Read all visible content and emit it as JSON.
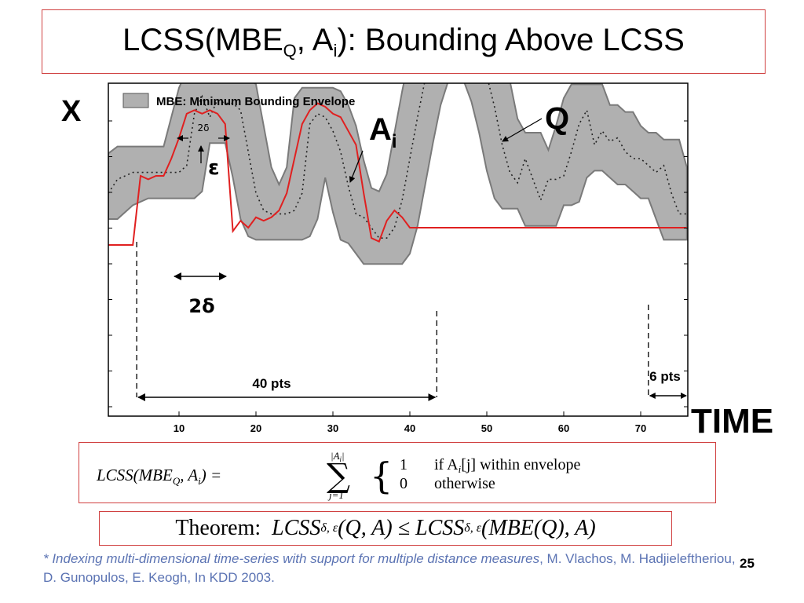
{
  "title": {
    "prefix": "LCSS(MBE",
    "sub1": "Q",
    "mid": ", A",
    "sub2": "i",
    "suffix": "): Bounding Above LCSS"
  },
  "chart_data": {
    "type": "line",
    "xlim": [
      0,
      76
    ],
    "ylim": [
      0,
      10
    ],
    "x_ticks": [
      10,
      20,
      30,
      40,
      50,
      60,
      70
    ],
    "x_tick_labels": [
      "10",
      "20",
      "30",
      "40",
      "50",
      "60",
      "70"
    ],
    "xlabel": "TIME",
    "ylabel": "X",
    "grid": false,
    "legend": {
      "placement": "top-left",
      "label": "MBE: Minimum Bounding Envelope"
    },
    "series": [
      {
        "name": "Q",
        "x": [
          0,
          2,
          4,
          6,
          8,
          10,
          11,
          12,
          13,
          14,
          15,
          16,
          17,
          18,
          19,
          20,
          21,
          22,
          23,
          24,
          25,
          26,
          27,
          28,
          29,
          30,
          31,
          32,
          33,
          34,
          35,
          36,
          37,
          38,
          39,
          40,
          41,
          42,
          43,
          44,
          45,
          46,
          47,
          48,
          49,
          50,
          51,
          52,
          53,
          54,
          55,
          56,
          57,
          58,
          59,
          60,
          61,
          62,
          63,
          64,
          65,
          66,
          67,
          68,
          69,
          70,
          71,
          72,
          73,
          74,
          75,
          76
        ],
        "values": [
          4.0,
          4.4,
          4.6,
          4.6,
          4.6,
          4.6,
          4.8,
          6.3,
          6.8,
          6.2,
          6.7,
          6.6,
          6.6,
          6.4,
          5.2,
          4.0,
          3.5,
          3.4,
          3.4,
          3.4,
          3.5,
          4.0,
          6.0,
          6.3,
          6.2,
          5.8,
          5.2,
          4.2,
          3.4,
          3.3,
          3.0,
          2.7,
          2.7,
          3.0,
          3.8,
          5.0,
          6.2,
          7.3,
          8.0,
          8.4,
          8.6,
          8.6,
          8.5,
          8.4,
          8.0,
          7.4,
          6.5,
          5.4,
          4.6,
          4.3,
          5.0,
          4.4,
          3.8,
          4.4,
          4.4,
          4.5,
          5.2,
          6.0,
          6.4,
          5.4,
          5.8,
          5.5,
          5.6,
          5.2,
          5.0,
          5.0,
          4.8,
          4.6,
          4.8,
          4.0,
          3.4,
          3.4
        ]
      },
      {
        "name": "A",
        "x": [
          0,
          3,
          4,
          5,
          6,
          7,
          8,
          9,
          10,
          11,
          12,
          13,
          14,
          15,
          16,
          17,
          18,
          19,
          20,
          21,
          22,
          23,
          24,
          25,
          26,
          27,
          28,
          29,
          30,
          31,
          32,
          33,
          34,
          35,
          36,
          37,
          38,
          39,
          40,
          45,
          50,
          55,
          60,
          65,
          70,
          76
        ],
        "values": [
          2.5,
          2.5,
          2.5,
          4.5,
          4.4,
          4.5,
          4.5,
          5.0,
          5.6,
          6.3,
          6.4,
          6.3,
          6.4,
          6.3,
          6.0,
          2.9,
          3.2,
          3.0,
          3.3,
          3.2,
          3.3,
          3.5,
          4.0,
          5.0,
          6.0,
          6.4,
          6.6,
          6.5,
          6.3,
          6.2,
          5.8,
          5.4,
          4.0,
          2.7,
          2.6,
          3.2,
          3.5,
          3.3,
          3.0,
          3.0,
          3.0,
          3.0,
          3.0,
          3.0,
          3.0,
          3.0
        ]
      }
    ]
  },
  "annotations": {
    "x_axis_letter": "X",
    "legend_label": "MBE: Minimum Bounding Envelope",
    "ai_main": "A",
    "ai_sub": "i",
    "q_label": "Q",
    "epsilon": "ε",
    "two_delta_small": "2δ",
    "two_delta_large": "2δ",
    "span_40": "40 pts",
    "span_6": "6 pts",
    "time": "TIME"
  },
  "formula": {
    "lhs": "LCSS(MBE",
    "lhs_sub": "Q",
    "lhs_end": ", A",
    "lhs_sub2": "i",
    "lhs_close": ") =",
    "sum_top": "|A",
    "sum_top_sub": "i",
    "sum_top_end": "|",
    "sum_bottom": "j=1",
    "case1_value": "1",
    "case1_cond": "if A",
    "case1_cond_sub": "i",
    "case1_cond_end": "[j]  within envelope",
    "case2_value": "0",
    "case2_cond": "otherwise"
  },
  "theorem": {
    "label": "Theorem:",
    "lhs": "LCSS",
    "sub": "δ, ε",
    "lhs_args": "(Q, A) ≤ LCSS",
    "rhs_args": "(MBE(Q), A)"
  },
  "footnote": {
    "italic_part": "* Indexing multi-dimensional time-series with support for multiple distance measures",
    "rest": ", M. Vlachos, M. Hadjieleftheriou, D. Gunopulos, E. Keogh, In KDD 2003."
  },
  "page_number": "25",
  "colors": {
    "envelope": "#b0b0b0",
    "envelope_edge": "#7a7a7a",
    "a_line": "#e02020",
    "box_border": "#d04040",
    "footnote": "#5b73b3"
  }
}
